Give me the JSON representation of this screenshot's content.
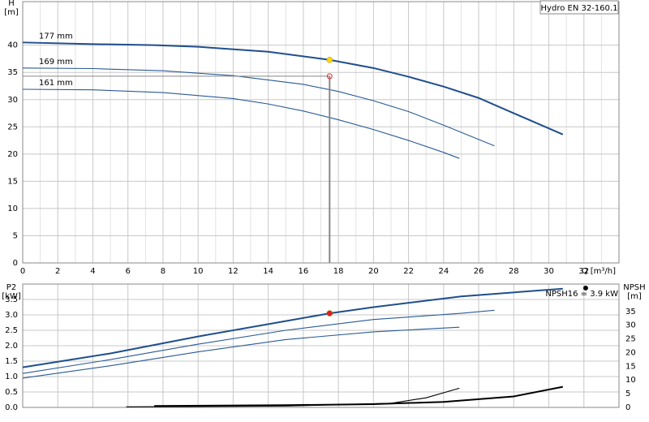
{
  "chart_data": [
    {
      "type": "line",
      "legend_label": "Hydro EN 32-160.1",
      "y_label": [
        "H",
        "[m]"
      ],
      "x_label": "Q [m³/h]",
      "xlim": [
        0,
        34
      ],
      "xticks": [
        0,
        2,
        4,
        6,
        8,
        10,
        12,
        14,
        16,
        18,
        20,
        22,
        24,
        26,
        28,
        30,
        32
      ],
      "xminorticks": [
        1,
        3,
        5,
        7,
        9,
        11,
        13,
        15,
        17,
        19,
        21,
        23,
        25,
        27,
        29,
        31,
        33
      ],
      "ylim": [
        0,
        48
      ],
      "yticks": [
        0,
        5,
        10,
        15,
        20,
        25,
        30,
        35,
        40
      ],
      "grid": true,
      "series": [
        {
          "name": "177 mm",
          "color": "#1f4e8c",
          "x": [
            0,
            4,
            7.5,
            10,
            14,
            17.5,
            20,
            22,
            24,
            26,
            28,
            30.8
          ],
          "values": [
            40.5,
            40.2,
            40,
            39.7,
            38.8,
            37.3,
            35.8,
            34.2,
            32.4,
            30.3,
            27.5,
            23.6
          ]
        },
        {
          "name": "169 mm",
          "color": "#2a5a96",
          "x": [
            0,
            4,
            8,
            12,
            16,
            18,
            20,
            22,
            24,
            26.9
          ],
          "values": [
            35.8,
            35.7,
            35.3,
            34.4,
            32.8,
            31.5,
            29.8,
            27.8,
            25.3,
            21.5
          ]
        },
        {
          "name": "161 mm",
          "color": "#2a5a96",
          "x": [
            0,
            4,
            8,
            12,
            14,
            16,
            18,
            20,
            22,
            24,
            24.9
          ],
          "values": [
            31.9,
            31.8,
            31.3,
            30.2,
            29.2,
            27.9,
            26.3,
            24.5,
            22.5,
            20.3,
            19.2
          ]
        }
      ],
      "duty_point": {
        "x": 17.5,
        "value": 37.3,
        "color": "#ffd700"
      },
      "required_point": {
        "x": 17.5,
        "value": 34.3,
        "color": "#e03030"
      }
    },
    {
      "type": "line",
      "y_label": [
        "P2",
        "[kW]"
      ],
      "y2_label": [
        "NPSH",
        "[m]"
      ],
      "annotation": "NPSH16 = 3.9 kW",
      "xlim": [
        0,
        34
      ],
      "xticks": [
        0,
        2,
        4,
        6,
        8,
        10,
        12,
        14,
        16,
        18,
        20,
        22,
        24,
        26,
        28,
        30,
        32
      ],
      "ylim": [
        0,
        4
      ],
      "yticks": [
        {
          "value": 0,
          "label": "0.0"
        },
        {
          "value": 0.5,
          "label": "0.5"
        },
        {
          "value": 1,
          "label": "1.0"
        },
        {
          "value": 1.5,
          "label": "1.5"
        },
        {
          "value": 2,
          "label": "2.0"
        },
        {
          "value": 2.5,
          "label": "2.5"
        },
        {
          "value": 3,
          "label": "3.0"
        },
        {
          "value": 3.5,
          "label": "3.5"
        }
      ],
      "y2lim": [
        0,
        45
      ],
      "y2ticks": [
        0,
        5,
        10,
        15,
        20,
        25,
        30,
        35
      ],
      "grid": true,
      "series": [
        {
          "color": "#1f4e8c",
          "x": [
            0,
            5,
            10,
            15,
            17.5,
            20,
            25,
            30.8
          ],
          "values": [
            1.3,
            1.75,
            2.3,
            2.8,
            3.05,
            3.25,
            3.6,
            3.85
          ]
        },
        {
          "color": "#2a5a96",
          "x": [
            0,
            5,
            10,
            15,
            20,
            25,
            26.9
          ],
          "values": [
            1.1,
            1.55,
            2.05,
            2.5,
            2.85,
            3.05,
            3.15
          ]
        },
        {
          "color": "#2a5a96",
          "x": [
            0,
            5,
            10,
            15,
            20,
            24.9
          ],
          "values": [
            0.95,
            1.35,
            1.8,
            2.2,
            2.45,
            2.6
          ]
        },
        {
          "color": "#000000",
          "axis": "y2",
          "x": [
            7.5,
            15,
            20,
            24,
            28,
            30.8
          ],
          "values": [
            0.5,
            0.8,
            1.2,
            2,
            4,
            7.5
          ]
        },
        {
          "color": "#000000",
          "axis": "y2",
          "x": [
            5.9,
            15,
            21,
            23,
            24.9
          ],
          "values": [
            0.2,
            0.5,
            1.5,
            3.5,
            7
          ]
        }
      ],
      "duty_point": {
        "x": 17.5,
        "value": 3.05,
        "color": "#e02020"
      },
      "marker_point": {
        "x": 32.1,
        "value": 3.87,
        "color": "#000000"
      }
    }
  ]
}
